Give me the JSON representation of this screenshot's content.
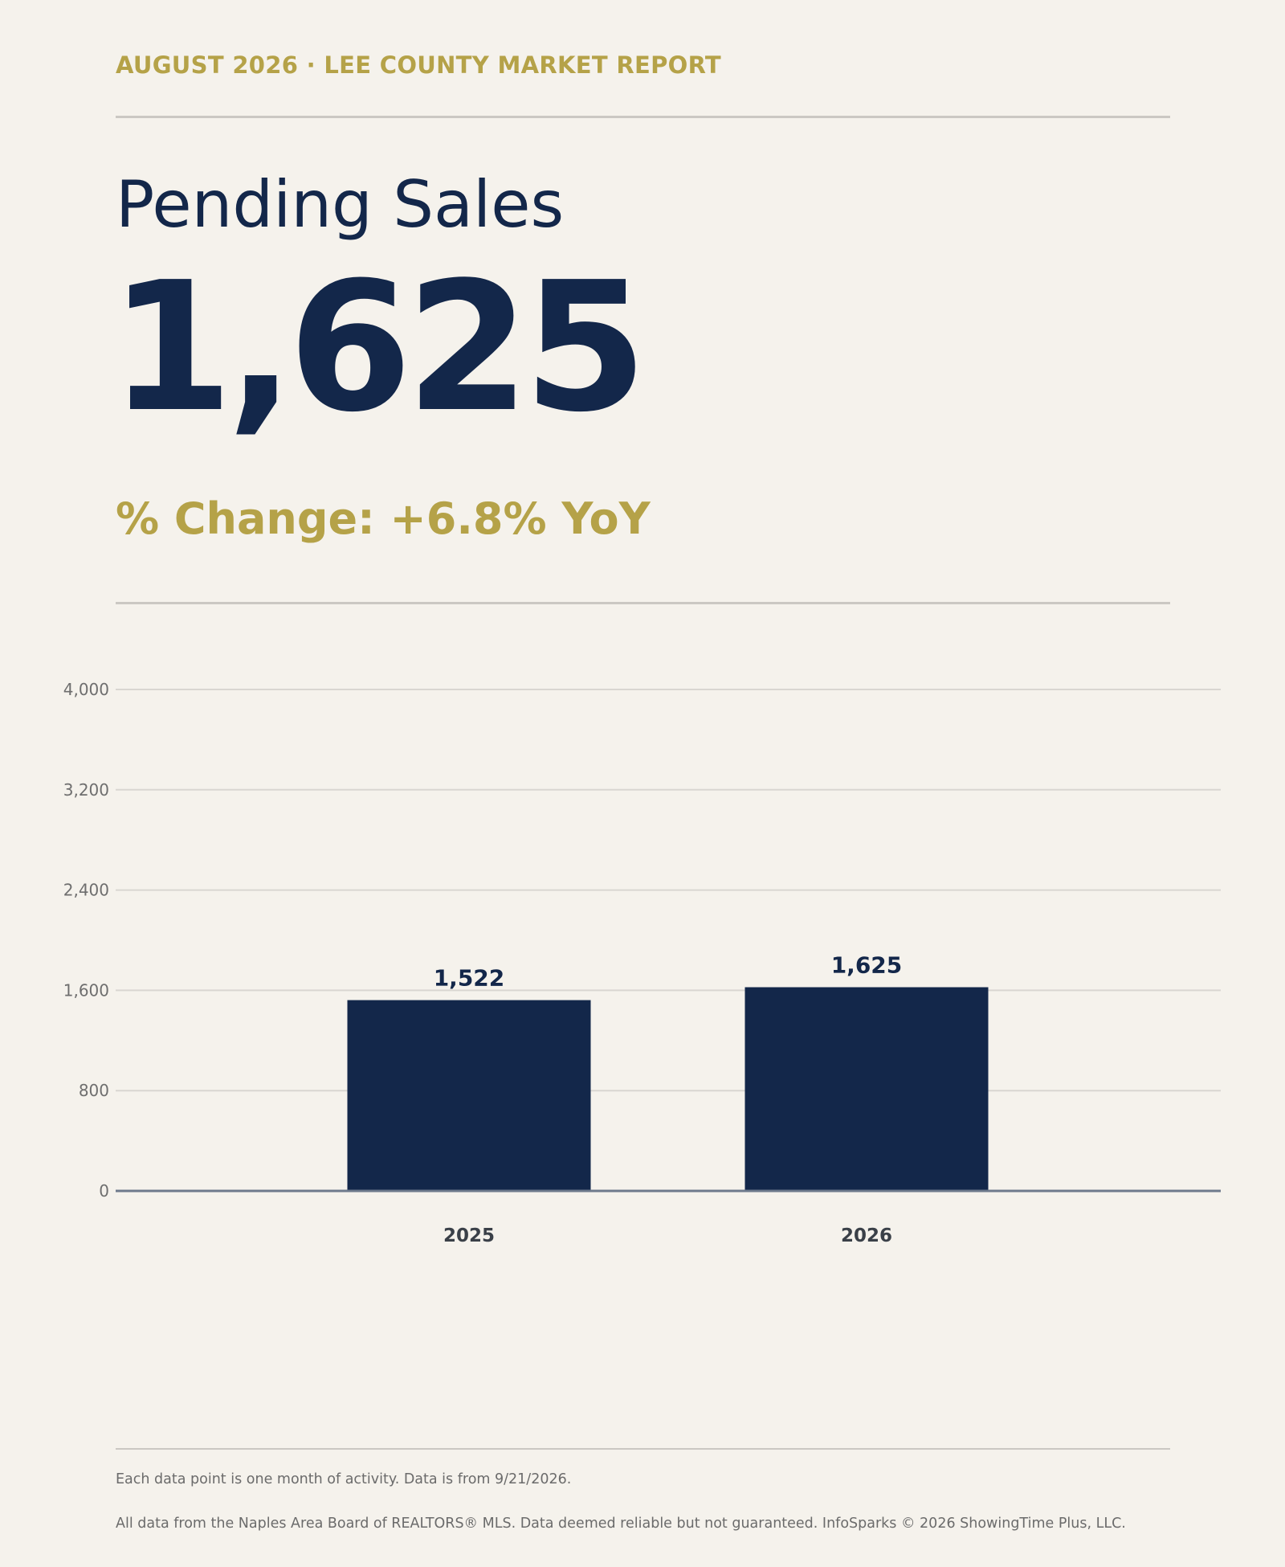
{
  "header": {
    "report_title": "AUGUST 2026 · LEE COUNTY MARKET REPORT"
  },
  "metric": {
    "title": "Pending Sales",
    "value": "1,625",
    "change_text": "% Change: +6.8% YoY"
  },
  "colors": {
    "background": "#f5f2ec",
    "navy": "#13274a",
    "gold": "#b5a248",
    "gridline": "#d9d6d1",
    "axis": "#6e7a8c"
  },
  "chart_data": {
    "type": "bar",
    "categories": [
      "2025",
      "2026"
    ],
    "values": [
      1522,
      1625
    ],
    "value_labels": [
      "1,522",
      "1,625"
    ],
    "yticks": [
      0,
      800,
      1600,
      2400,
      3200,
      4000
    ],
    "ytick_labels": [
      "0",
      "800",
      "1,600",
      "2,400",
      "3,200",
      "4,000"
    ],
    "ylim": [
      0,
      4000
    ],
    "grid": true,
    "bar_color": "#13274a"
  },
  "footer": {
    "note_1": "Each data point is one month of activity. Data is from 9/21/2026.",
    "note_2": "All data from the Naples Area Board of REALTORS® MLS. Data deemed reliable but not guaranteed. InfoSparks © 2026 ShowingTime Plus, LLC."
  }
}
